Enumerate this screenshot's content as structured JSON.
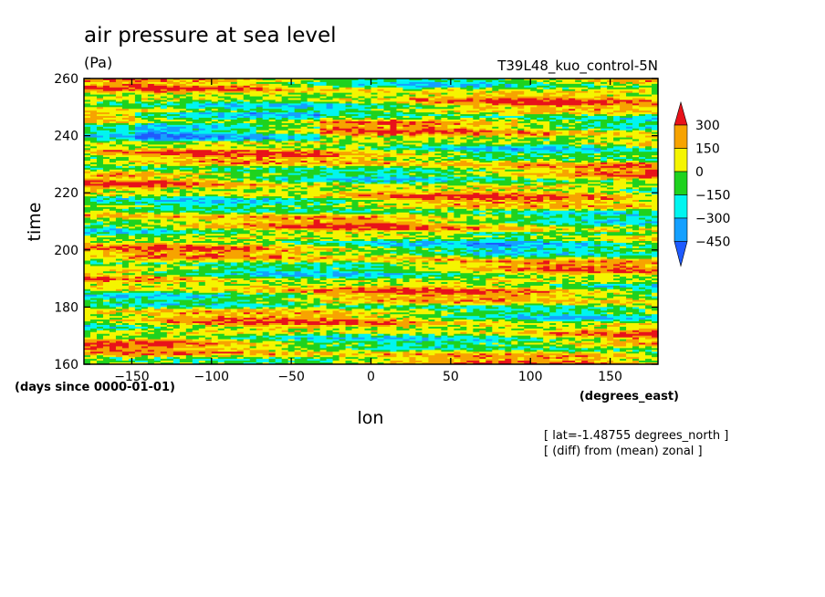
{
  "chart_data": {
    "type": "heatmap",
    "title": "air pressure at sea level",
    "units": "(Pa)",
    "dataset": "T39L48_kuo_control-5N",
    "xlabel": "lon",
    "ylabel": "time",
    "x_units": "(degrees_east)",
    "y_units": "(days since 0000-01-01)",
    "note_lat": "[ lat=-1.48755 degrees_north ]",
    "note_diff": "[ (diff) from (mean) zonal ]",
    "xlim": [
      -180,
      180
    ],
    "ylim": [
      160,
      260
    ],
    "xticks": [
      -150,
      -100,
      -50,
      0,
      50,
      100,
      150
    ],
    "yticks": [
      160,
      180,
      200,
      220,
      240,
      260
    ],
    "xtick_labels": [
      "-150",
      "-100",
      "-50",
      "0",
      "50",
      "100",
      "150"
    ],
    "ytick_labels": [
      "160",
      "180",
      "200",
      "220",
      "240",
      "260"
    ],
    "colorbar": {
      "labels": [
        "300",
        "150",
        "0",
        "-150",
        "-300",
        "-450"
      ],
      "bands": [
        {
          "from": 300,
          "to": null,
          "color": "#e8121a"
        },
        {
          "from": 150,
          "to": 300,
          "color": "#f7a300"
        },
        {
          "from": 0,
          "to": 150,
          "color": "#f5f500"
        },
        {
          "from": -150,
          "to": 0,
          "color": "#1ed21e"
        },
        {
          "from": -300,
          "to": -150,
          "color": "#00f5f0"
        },
        {
          "from": -450,
          "to": -300,
          "color": "#14a0ff"
        },
        {
          "from": null,
          "to": -450,
          "color": "#1e5aff"
        }
      ]
    }
  }
}
